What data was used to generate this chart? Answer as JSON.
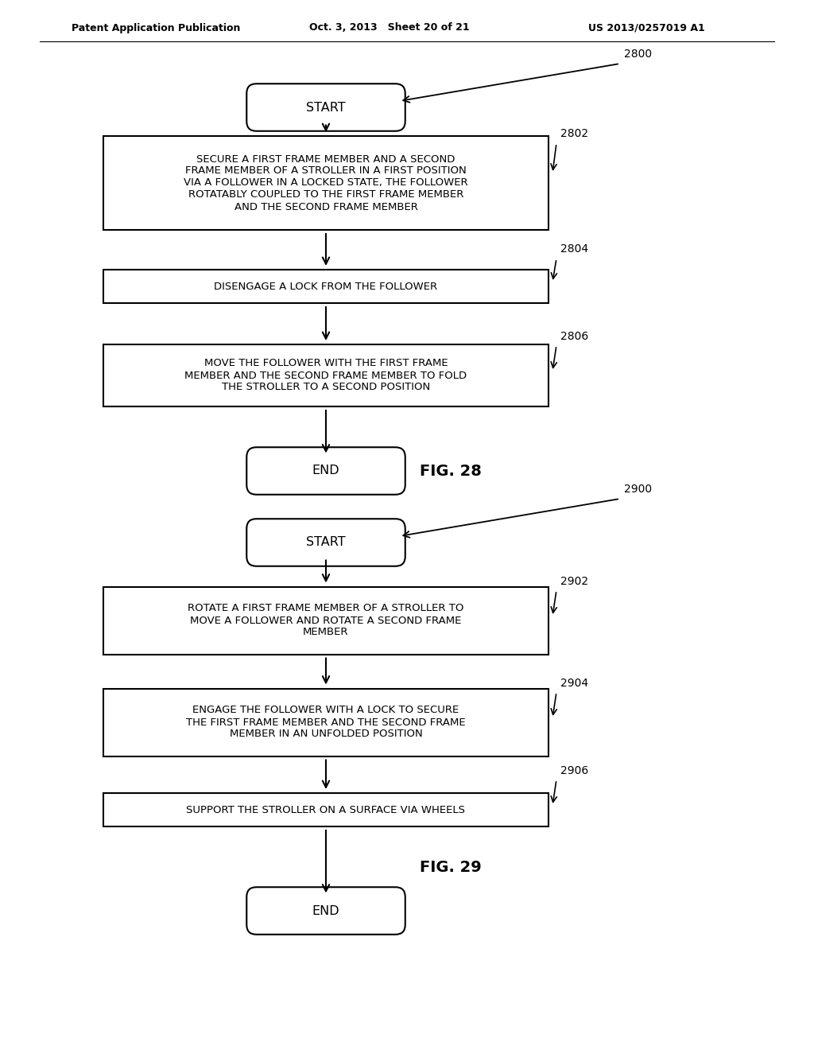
{
  "bg_color": "#ffffff",
  "header_left": "Patent Application Publication",
  "header_mid": "Oct. 3, 2013   Sheet 20 of 21",
  "header_right": "US 2013/0257019 A1",
  "fig28_label": "FIG. 28",
  "fig29_label": "FIG. 29",
  "ref_2800": "2800",
  "ref_2802": "2802",
  "ref_2804": "2804",
  "ref_2806": "2806",
  "ref_2900": "2900",
  "ref_2902": "2902",
  "ref_2904": "2904",
  "ref_2906": "2906",
  "start_text": "START",
  "end_text": "END",
  "box2802_text": "SECURE A FIRST FRAME MEMBER AND A SECOND\nFRAME MEMBER OF A STROLLER IN A FIRST POSITION\nVIA A FOLLOWER IN A LOCKED STATE, THE FOLLOWER\nROTATABLY COUPLED TO THE FIRST FRAME MEMBER\nAND THE SECOND FRAME MEMBER",
  "box2804_text": "DISENGAGE A LOCK FROM THE FOLLOWER",
  "box2806_text": "MOVE THE FOLLOWER WITH THE FIRST FRAME\nMEMBER AND THE SECOND FRAME MEMBER TO FOLD\nTHE STROLLER TO A SECOND POSITION",
  "box2902_text": "ROTATE A FIRST FRAME MEMBER OF A STROLLER TO\nMOVE A FOLLOWER AND ROTATE A SECOND FRAME\nMEMBER",
  "box2904_text": "ENGAGE THE FOLLOWER WITH A LOCK TO SECURE\nTHE FIRST FRAME MEMBER AND THE SECOND FRAME\nMEMBER IN AN UNFOLDED POSITION",
  "box2906_text": "SUPPORT THE STROLLER ON A SURFACE VIA WHEELS"
}
